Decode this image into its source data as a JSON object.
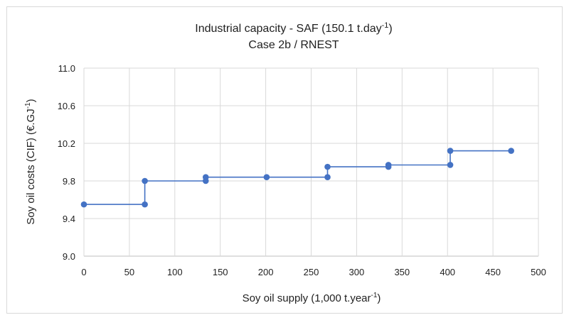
{
  "chart_data": {
    "type": "line",
    "title": "Industrial capacity  - SAF (150.1 t.day-1)",
    "title_main": "Industrial capacity  - SAF (150.1 t.day",
    "title_sup": "-1",
    "title_close": ")",
    "subtitle": "Case 2b / RNEST",
    "xlabel": "Soy oil supply (1,000 t.year-1)",
    "xlabel_main": "Soy oil supply (1,000 t.year",
    "xlabel_sup": "-1",
    "xlabel_close": ")",
    "ylabel": "Soy oil costs (CIF) (€.GJ-1)",
    "ylabel_main": "Soy oil costs (CIF) (€.GJ",
    "ylabel_sup": "-1",
    "ylabel_close": ")",
    "xlim": [
      0,
      500
    ],
    "ylim": [
      9.0,
      11.0
    ],
    "xticks": [
      "0",
      "50",
      "100",
      "150",
      "200",
      "250",
      "300",
      "350",
      "400",
      "450",
      "500"
    ],
    "yticks": [
      "9.0",
      "9.4",
      "9.8",
      "10.2",
      "10.6",
      "11.0"
    ],
    "grid": true,
    "line_color": "#4472c4",
    "series": [
      {
        "points": [
          [
            0,
            9.55
          ],
          [
            67,
            9.55
          ],
          [
            67,
            9.8
          ],
          [
            134,
            9.8
          ],
          [
            134,
            9.84
          ],
          [
            201,
            9.84
          ],
          [
            268,
            9.84
          ],
          [
            268,
            9.95
          ],
          [
            335,
            9.95
          ],
          [
            335,
            9.97
          ],
          [
            403,
            9.97
          ],
          [
            403,
            10.12
          ],
          [
            470,
            10.12
          ]
        ],
        "markers": [
          [
            0,
            9.55
          ],
          [
            67,
            9.55
          ],
          [
            67,
            9.8
          ],
          [
            134,
            9.8
          ],
          [
            134,
            9.84
          ],
          [
            201,
            9.84
          ],
          [
            268,
            9.84
          ],
          [
            268,
            9.95
          ],
          [
            335,
            9.95
          ],
          [
            335,
            9.97
          ],
          [
            403,
            9.97
          ],
          [
            403,
            10.12
          ],
          [
            470,
            10.12
          ]
        ]
      }
    ]
  }
}
